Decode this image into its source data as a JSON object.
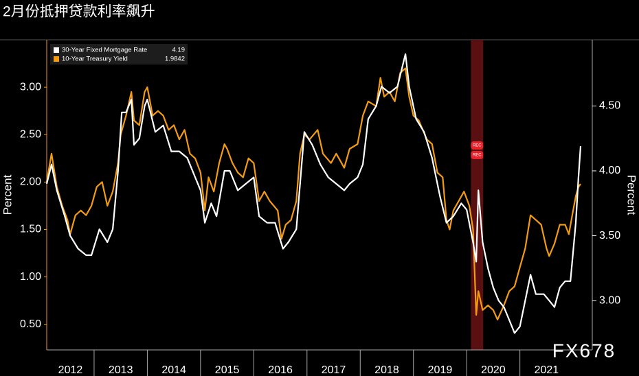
{
  "chart_data": {
    "type": "line",
    "title": "2月份抵押贷款利率飙升",
    "ylabel": "Percent",
    "y2label": "Percent",
    "watermark": "FX678",
    "xlim": [
      2012.11,
      2022.36
    ],
    "xticks": [
      {
        "value": 2012,
        "label": "2012"
      },
      {
        "value": 2013,
        "label": "2013"
      },
      {
        "value": 2014,
        "label": "2014"
      },
      {
        "value": 2015,
        "label": "2015"
      },
      {
        "value": 2016,
        "label": "2016"
      },
      {
        "value": 2017,
        "label": "2017"
      },
      {
        "value": 2018,
        "label": "2018"
      },
      {
        "value": 2019,
        "label": "2019"
      },
      {
        "value": 2020,
        "label": "2020"
      },
      {
        "value": 2021,
        "label": "2021"
      }
    ],
    "ylim": [
      0.23,
      3.5
    ],
    "yticks": [
      {
        "value": 0.5,
        "label": "0.50"
      },
      {
        "value": 1,
        "label": "1.00"
      },
      {
        "value": 1.5,
        "label": "1.50"
      },
      {
        "value": 2,
        "label": "2.00"
      },
      {
        "value": 2.5,
        "label": "2.50"
      },
      {
        "value": 3,
        "label": "3.00"
      }
    ],
    "y2lim": [
      2.62,
      5.01
    ],
    "y2ticks": [
      {
        "value": 3,
        "label": "3.00"
      },
      {
        "value": 3.5,
        "label": "3.50"
      },
      {
        "value": 4,
        "label": "4.00"
      },
      {
        "value": 4.5,
        "label": "4.50"
      }
    ],
    "recession": {
      "label": "REC",
      "start": 2020.08,
      "end": 2020.31
    },
    "series": [
      {
        "name": "30-Year Fixed Mortgage Rate",
        "last_value": 4.19,
        "color": "#ffffff",
        "axis": "y2",
        "x": [
          2012.11,
          2012.2,
          2012.3,
          2012.45,
          2012.55,
          2012.7,
          2012.85,
          2012.95,
          2013.1,
          2013.25,
          2013.35,
          2013.45,
          2013.52,
          2013.6,
          2013.7,
          2013.75,
          2013.85,
          2013.95,
          2014.0,
          2014.15,
          2014.3,
          2014.45,
          2014.6,
          2014.75,
          2014.9,
          2015.0,
          2015.08,
          2015.2,
          2015.3,
          2015.45,
          2015.55,
          2015.7,
          2015.85,
          2016.0,
          2016.1,
          2016.25,
          2016.4,
          2016.55,
          2016.65,
          2016.8,
          2016.88,
          2016.95,
          2017.1,
          2017.25,
          2017.4,
          2017.55,
          2017.7,
          2017.8,
          2017.95,
          2018.05,
          2018.15,
          2018.3,
          2018.4,
          2018.55,
          2018.7,
          2018.85,
          2018.92,
          2019.05,
          2019.2,
          2019.35,
          2019.5,
          2019.62,
          2019.75,
          2019.9,
          2020.0,
          2020.12,
          2020.18,
          2020.22,
          2020.3,
          2020.4,
          2020.5,
          2020.6,
          2020.7,
          2020.8,
          2020.9,
          2021.0,
          2021.1,
          2021.2,
          2021.3,
          2021.45,
          2021.55,
          2021.65,
          2021.75,
          2021.85,
          2021.95,
          2022.05,
          2022.1,
          2022.14
        ],
        "values": [
          3.9,
          4.05,
          3.85,
          3.65,
          3.5,
          3.4,
          3.35,
          3.35,
          3.55,
          3.45,
          3.55,
          4.0,
          4.45,
          4.45,
          4.55,
          4.2,
          4.25,
          4.5,
          4.55,
          4.3,
          4.35,
          4.15,
          4.15,
          4.1,
          3.95,
          3.85,
          3.6,
          3.75,
          3.65,
          4.0,
          4.0,
          3.85,
          3.9,
          3.95,
          3.65,
          3.6,
          3.6,
          3.4,
          3.45,
          3.55,
          3.95,
          4.3,
          4.2,
          4.05,
          3.95,
          3.9,
          3.85,
          3.9,
          3.95,
          4.05,
          4.4,
          4.5,
          4.65,
          4.6,
          4.65,
          4.9,
          4.65,
          4.4,
          4.3,
          4.1,
          3.8,
          3.6,
          3.65,
          3.75,
          3.7,
          3.45,
          3.3,
          3.85,
          3.45,
          3.25,
          3.1,
          3.0,
          2.95,
          2.85,
          2.75,
          2.8,
          3.0,
          3.2,
          3.05,
          3.05,
          3.0,
          2.95,
          3.1,
          3.15,
          3.15,
          3.6,
          3.95,
          4.19
        ]
      },
      {
        "name": "10-Year Treasury Yield",
        "last_value": 1.9842,
        "color": "#f39c12",
        "x": [
          2012.11,
          2012.2,
          2012.3,
          2012.4,
          2012.5,
          2012.55,
          2012.65,
          2012.75,
          2012.85,
          2012.95,
          2013.05,
          2013.15,
          2013.25,
          2013.35,
          2013.45,
          2013.5,
          2013.6,
          2013.7,
          2013.75,
          2013.85,
          2013.95,
          2014.0,
          2014.1,
          2014.2,
          2014.3,
          2014.4,
          2014.5,
          2014.6,
          2014.7,
          2014.8,
          2014.9,
          2015.0,
          2015.08,
          2015.15,
          2015.25,
          2015.35,
          2015.45,
          2015.5,
          2015.6,
          2015.7,
          2015.8,
          2015.9,
          2016.0,
          2016.1,
          2016.2,
          2016.3,
          2016.45,
          2016.52,
          2016.6,
          2016.7,
          2016.8,
          2016.87,
          2016.95,
          2017.05,
          2017.2,
          2017.3,
          2017.45,
          2017.55,
          2017.7,
          2017.8,
          2017.95,
          2018.05,
          2018.15,
          2018.3,
          2018.38,
          2018.45,
          2018.55,
          2018.65,
          2018.75,
          2018.85,
          2018.92,
          2019.0,
          2019.1,
          2019.25,
          2019.35,
          2019.45,
          2019.55,
          2019.62,
          2019.68,
          2019.75,
          2019.85,
          2019.95,
          2020.05,
          2020.12,
          2020.18,
          2020.22,
          2020.3,
          2020.4,
          2020.5,
          2020.58,
          2020.7,
          2020.8,
          2020.9,
          2021.0,
          2021.1,
          2021.2,
          2021.3,
          2021.4,
          2021.5,
          2021.55,
          2021.65,
          2021.75,
          2021.85,
          2021.92,
          2022.0,
          2022.05,
          2022.1,
          2022.14
        ],
        "values": [
          2.0,
          2.3,
          1.95,
          1.75,
          1.6,
          1.45,
          1.65,
          1.7,
          1.65,
          1.75,
          1.95,
          2.0,
          1.75,
          1.9,
          2.2,
          2.5,
          2.7,
          2.95,
          2.65,
          2.6,
          2.95,
          3.0,
          2.7,
          2.75,
          2.7,
          2.55,
          2.6,
          2.45,
          2.55,
          2.3,
          2.25,
          2.1,
          1.7,
          2.05,
          1.9,
          2.2,
          2.4,
          2.35,
          2.2,
          2.1,
          2.05,
          2.25,
          2.2,
          1.8,
          1.9,
          1.8,
          1.7,
          1.4,
          1.55,
          1.6,
          1.8,
          2.3,
          2.5,
          2.45,
          2.55,
          2.3,
          2.2,
          2.3,
          2.15,
          2.35,
          2.4,
          2.7,
          2.85,
          2.8,
          3.1,
          2.9,
          2.95,
          2.85,
          3.15,
          3.2,
          2.9,
          2.7,
          2.65,
          2.45,
          2.4,
          2.1,
          2.05,
          1.6,
          1.5,
          1.7,
          1.8,
          1.9,
          1.75,
          1.5,
          0.6,
          0.85,
          0.65,
          0.7,
          0.65,
          0.55,
          0.7,
          0.85,
          0.9,
          1.1,
          1.3,
          1.65,
          1.6,
          1.55,
          1.3,
          1.22,
          1.35,
          1.55,
          1.55,
          1.45,
          1.7,
          1.85,
          1.95,
          1.98
        ]
      }
    ]
  }
}
